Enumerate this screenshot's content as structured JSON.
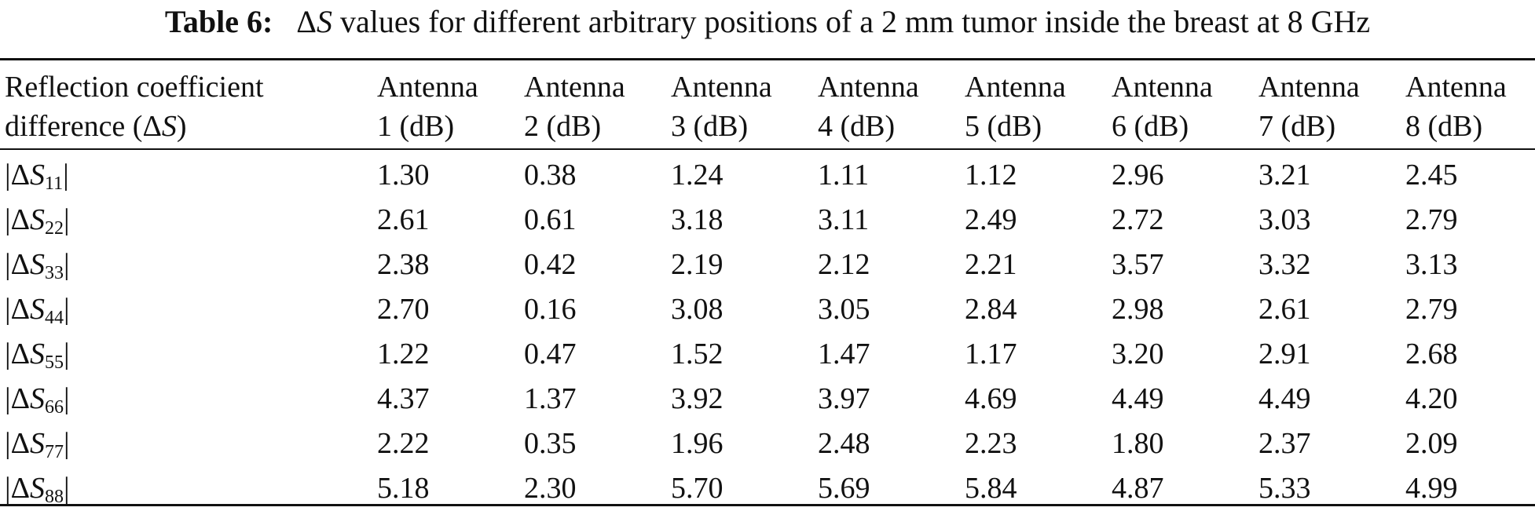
{
  "table": {
    "caption_label": "Table 6:",
    "caption_delta": "Δ",
    "caption_symbol": "S",
    "caption_text": " values for different arbitrary positions of a 2 mm tumor inside the breast at 8 GHz",
    "header": {
      "first_col_line1": "Reflection coefficient",
      "first_col_line2_prefix": "difference (Δ",
      "first_col_line2_symbol": "S",
      "first_col_line2_suffix": ")",
      "antennas": [
        {
          "line1": "Antenna",
          "line2": "1 (dB)"
        },
        {
          "line1": "Antenna",
          "line2": "2 (dB)"
        },
        {
          "line1": "Antenna",
          "line2": "3 (dB)"
        },
        {
          "line1": "Antenna",
          "line2": "4 (dB)"
        },
        {
          "line1": "Antenna",
          "line2": "5 (dB)"
        },
        {
          "line1": "Antenna",
          "line2": "6 (dB)"
        },
        {
          "line1": "Antenna",
          "line2": "7 (dB)"
        },
        {
          "line1": "Antenna",
          "line2": "8 (dB)"
        }
      ]
    },
    "rows": [
      {
        "label_open": "|Δ",
        "label_symbol": "S",
        "label_sub": "11",
        "label_close": "|",
        "values": [
          "1.30",
          "0.38",
          "1.24",
          "1.11",
          "1.12",
          "2.96",
          "3.21",
          "2.45"
        ]
      },
      {
        "label_open": "|Δ",
        "label_symbol": "S",
        "label_sub": "22",
        "label_close": "|",
        "values": [
          "2.61",
          "0.61",
          "3.18",
          "3.11",
          "2.49",
          "2.72",
          "3.03",
          "2.79"
        ]
      },
      {
        "label_open": "|Δ",
        "label_symbol": "S",
        "label_sub": "33",
        "label_close": "|",
        "values": [
          "2.38",
          "0.42",
          "2.19",
          "2.12",
          "2.21",
          "3.57",
          "3.32",
          "3.13"
        ]
      },
      {
        "label_open": "|Δ",
        "label_symbol": "S",
        "label_sub": "44",
        "label_close": "|",
        "values": [
          "2.70",
          "0.16",
          "3.08",
          "3.05",
          "2.84",
          "2.98",
          "2.61",
          "2.79"
        ]
      },
      {
        "label_open": "|Δ",
        "label_symbol": "S",
        "label_sub": "55",
        "label_close": "|",
        "values": [
          "1.22",
          "0.47",
          "1.52",
          "1.47",
          "1.17",
          "3.20",
          "2.91",
          "2.68"
        ]
      },
      {
        "label_open": "|Δ",
        "label_symbol": "S",
        "label_sub": "66",
        "label_close": "|",
        "values": [
          "4.37",
          "1.37",
          "3.92",
          "3.97",
          "4.69",
          "4.49",
          "4.49",
          "4.20"
        ]
      },
      {
        "label_open": "|Δ",
        "label_symbol": "S",
        "label_sub": "77",
        "label_close": "|",
        "values": [
          "2.22",
          "0.35",
          "1.96",
          "2.48",
          "2.23",
          "1.80",
          "2.37",
          "2.09"
        ]
      },
      {
        "label_open": "|Δ",
        "label_symbol": "S",
        "label_sub": "88",
        "label_close": "|",
        "values": [
          "5.18",
          "2.30",
          "5.70",
          "5.69",
          "5.84",
          "4.87",
          "5.33",
          "4.99"
        ]
      }
    ]
  }
}
